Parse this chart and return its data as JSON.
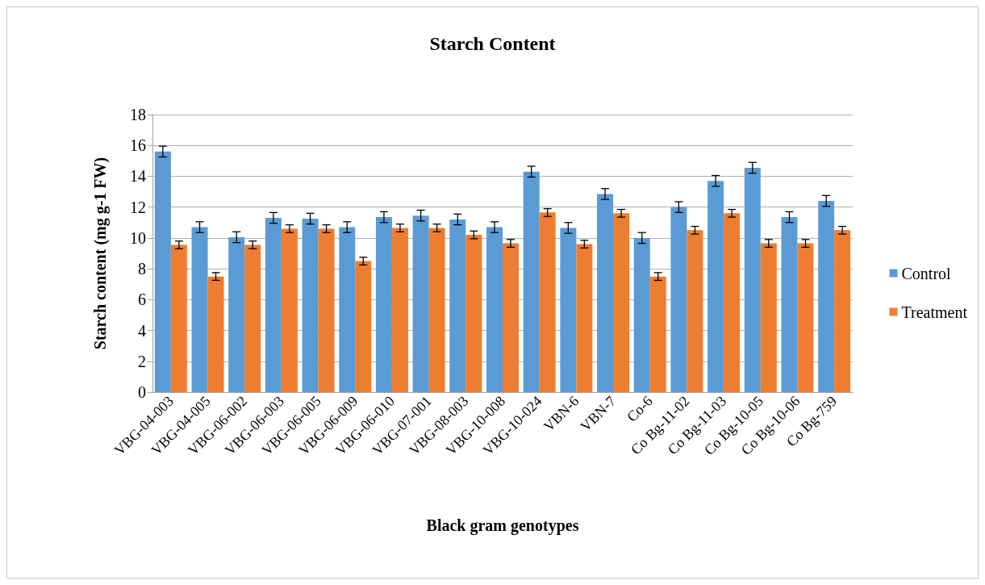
{
  "chart_data": {
    "type": "bar",
    "title": "Starch Content",
    "xlabel": "Black gram genotypes",
    "ylabel": "Starch content (mg g-1 FW)",
    "categories": [
      "VBG-04-003",
      "VBG-04-005",
      "VBG-06-002",
      "VBG-06-003",
      "VBG-06-005",
      "VBG-06-009",
      "VBG-06-010",
      "VBG-07-001",
      "VBG-08-003",
      "VBG-10-008",
      "VBG-10-024",
      "VBN-6",
      "VBN-7",
      "Co-6",
      "Co Bg-11-02",
      "Co Bg-11-03",
      "Co Bg-10-05",
      "Co Bg-10-06",
      "Co Bg-759"
    ],
    "series": [
      {
        "name": "Control",
        "color": "#5b9bd5",
        "values": [
          15.6,
          10.7,
          10.05,
          11.3,
          11.25,
          10.7,
          11.35,
          11.45,
          11.2,
          10.7,
          14.3,
          10.65,
          12.85,
          10.0,
          12.0,
          13.7,
          14.55,
          11.35,
          12.4
        ],
        "errors": [
          0.35,
          0.35,
          0.35,
          0.35,
          0.35,
          0.35,
          0.35,
          0.35,
          0.35,
          0.35,
          0.35,
          0.35,
          0.35,
          0.35,
          0.35,
          0.35,
          0.35,
          0.35,
          0.35
        ]
      },
      {
        "name": "Treatment",
        "color": "#ed7d31",
        "values": [
          9.55,
          7.5,
          9.55,
          10.6,
          10.6,
          8.5,
          10.65,
          10.65,
          10.2,
          9.65,
          11.65,
          9.6,
          11.6,
          7.5,
          10.5,
          11.6,
          9.65,
          9.65,
          10.5
        ],
        "errors": [
          0.25,
          0.25,
          0.25,
          0.25,
          0.25,
          0.25,
          0.25,
          0.25,
          0.25,
          0.25,
          0.25,
          0.25,
          0.25,
          0.25,
          0.25,
          0.25,
          0.25,
          0.25,
          0.25
        ]
      }
    ],
    "ylim": [
      0,
      18
    ],
    "yticks": [
      0,
      2,
      4,
      6,
      8,
      10,
      12,
      14,
      16,
      18
    ],
    "grid": "y",
    "legend": "right"
  }
}
